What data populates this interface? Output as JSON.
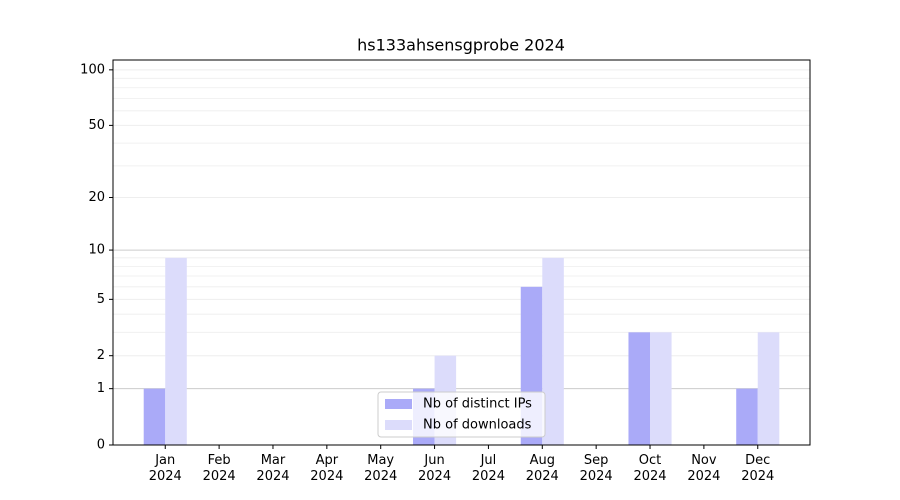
{
  "chart_data": {
    "type": "bar",
    "title": "hs133ahsensgprobe 2024",
    "categories": [
      "Jan\n2024",
      "Feb\n2024",
      "Mar\n2024",
      "Apr\n2024",
      "May\n2024",
      "Jun\n2024",
      "Jul\n2024",
      "Aug\n2024",
      "Sep\n2024",
      "Oct\n2024",
      "Nov\n2024",
      "Dec\n2024"
    ],
    "series": [
      {
        "name": "Nb of distinct IPs",
        "color": "#aaaaf8",
        "values": [
          1,
          0,
          0,
          0,
          0,
          1,
          0,
          6,
          0,
          3,
          0,
          1
        ]
      },
      {
        "name": "Nb of downloads",
        "color": "#dcdcfb",
        "values": [
          9,
          0,
          0,
          0,
          0,
          2,
          0,
          9,
          0,
          3,
          0,
          3
        ]
      }
    ],
    "yscale": "log1p",
    "ylim": [
      0,
      113
    ],
    "yticks": [
      0,
      1,
      2,
      5,
      10,
      20,
      50,
      100
    ],
    "minor_yticks": [
      3,
      4,
      6,
      7,
      8,
      9,
      30,
      40,
      60,
      70,
      80,
      90
    ],
    "grid": true,
    "legend": "lower center"
  }
}
